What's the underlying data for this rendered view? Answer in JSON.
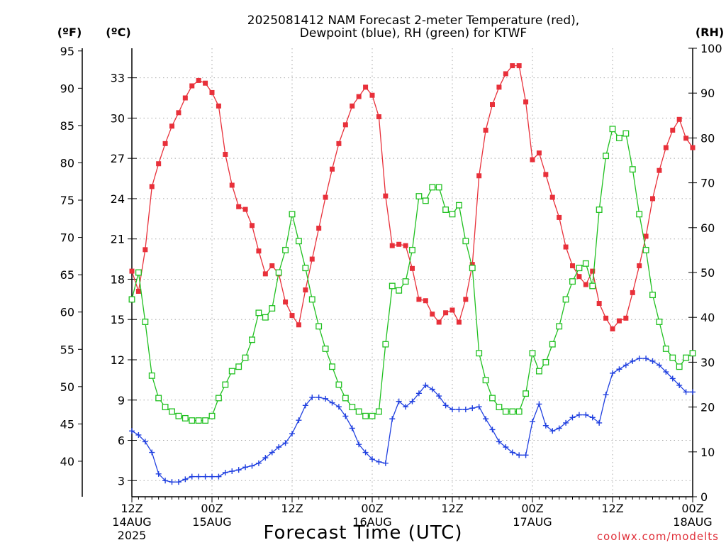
{
  "chart_data": {
    "type": "line",
    "title_line1": "2025081412 NAM Forecast 2-meter Temperature (red),",
    "title_line2": "Dewpoint (blue), RH (green) for KTWF",
    "xlabel": "Forecast Time (UTC)",
    "credit": "coolwx.com/modelts",
    "units": {
      "fahrenheit": "(ºF)",
      "celsius": "(ºC)",
      "rh": "(RH)"
    },
    "x_range_hours": [
      0,
      84
    ],
    "celsius_range": [
      1.8,
      35.2
    ],
    "fahrenheit_axis_range": [
      35.24,
      95.36
    ],
    "rh_range": [
      0,
      100
    ],
    "fahrenheit_ticks": [
      "40",
      "45",
      "50",
      "55",
      "60",
      "65",
      "70",
      "75",
      "80",
      "85",
      "90",
      "95"
    ],
    "celsius_ticks": [
      "3",
      "6",
      "9",
      "12",
      "15",
      "18",
      "21",
      "24",
      "27",
      "30",
      "33"
    ],
    "rh_ticks": [
      "0",
      "10",
      "20",
      "30",
      "40",
      "50",
      "60",
      "70",
      "80",
      "90",
      "100"
    ],
    "x_ticks": [
      {
        "hour": 0,
        "label1": "12Z",
        "label2": "14AUG",
        "label3": "2025"
      },
      {
        "hour": 12,
        "label1": "00Z",
        "label2": "15AUG",
        "label3": ""
      },
      {
        "hour": 24,
        "label1": "12Z",
        "label2": "",
        "label3": ""
      },
      {
        "hour": 36,
        "label1": "00Z",
        "label2": "16AUG",
        "label3": ""
      },
      {
        "hour": 48,
        "label1": "12Z",
        "label2": "",
        "label3": ""
      },
      {
        "hour": 60,
        "label1": "00Z",
        "label2": "17AUG",
        "label3": ""
      },
      {
        "hour": 72,
        "label1": "12Z",
        "label2": "",
        "label3": ""
      },
      {
        "hour": 84,
        "label1": "00Z",
        "label2": "18AUG",
        "label3": ""
      }
    ],
    "grid": true,
    "series": [
      {
        "name": "Temperature",
        "color": "#e8303a",
        "marker": "filled-square",
        "axis": "celsius",
        "values": [
          18.6,
          17.1,
          20.2,
          24.9,
          26.6,
          28.1,
          29.4,
          30.4,
          31.5,
          32.4,
          32.8,
          32.6,
          31.9,
          30.9,
          27.3,
          25.0,
          23.4,
          23.2,
          22.0,
          20.1,
          18.4,
          19.0,
          18.4,
          16.3,
          15.3,
          14.6,
          17.2,
          19.5,
          21.8,
          24.1,
          26.2,
          28.1,
          29.5,
          30.9,
          31.6,
          32.3,
          31.7,
          30.1,
          24.2,
          20.5,
          20.6,
          20.5,
          18.8,
          16.5,
          16.4,
          15.4,
          14.8,
          15.5,
          15.7,
          14.8,
          16.5,
          19.1,
          25.7,
          29.1,
          31.0,
          32.3,
          33.3,
          33.9,
          33.9,
          31.2,
          26.9,
          27.4,
          25.8,
          24.1,
          22.6,
          20.4,
          19.0,
          18.2,
          17.6,
          18.6,
          16.2,
          15.1,
          14.3,
          14.9,
          15.1,
          17.0,
          19.0,
          21.2,
          24.0,
          26.1,
          27.8,
          29.1,
          29.9,
          28.5,
          27.8
        ]
      },
      {
        "name": "Dewpoint",
        "color": "#2040e0",
        "marker": "plus",
        "axis": "celsius",
        "values": [
          6.7,
          6.4,
          5.9,
          5.1,
          3.5,
          3.0,
          2.9,
          2.9,
          3.1,
          3.3,
          3.3,
          3.3,
          3.3,
          3.3,
          3.6,
          3.7,
          3.8,
          4.0,
          4.1,
          4.3,
          4.7,
          5.1,
          5.5,
          5.8,
          6.5,
          7.5,
          8.6,
          9.2,
          9.2,
          9.1,
          8.8,
          8.5,
          7.8,
          6.9,
          5.7,
          5.1,
          4.6,
          4.4,
          4.3,
          7.6,
          8.9,
          8.5,
          8.9,
          9.5,
          10.1,
          9.8,
          9.3,
          8.6,
          8.3,
          8.3,
          8.3,
          8.4,
          8.5,
          7.6,
          6.8,
          5.9,
          5.5,
          5.1,
          4.9,
          4.9,
          7.4,
          8.7,
          7.1,
          6.7,
          6.9,
          7.3,
          7.7,
          7.9,
          7.9,
          7.7,
          7.3,
          9.4,
          11.0,
          11.3,
          11.6,
          11.9,
          12.1,
          12.1,
          11.9,
          11.6,
          11.1,
          10.6,
          10.1,
          9.6,
          9.6
        ]
      },
      {
        "name": "RH",
        "color": "#20c020",
        "marker": "open-square",
        "axis": "rh",
        "values": [
          44,
          50,
          39,
          27,
          22,
          20,
          19,
          18,
          17.5,
          17,
          17,
          17,
          18,
          22,
          25,
          28,
          29,
          31,
          35,
          41,
          40,
          42,
          50,
          55,
          63,
          57,
          51,
          44,
          38,
          33,
          29,
          25,
          22,
          20,
          19,
          18,
          18,
          19,
          34,
          47,
          46,
          48,
          55,
          67,
          66,
          69,
          69,
          64,
          63,
          65,
          57,
          51,
          32,
          26,
          22,
          20,
          19,
          19,
          19,
          23,
          32,
          28,
          30,
          34,
          38,
          44,
          48,
          51,
          52,
          47,
          64,
          76,
          82,
          80,
          81,
          73,
          63,
          55,
          45,
          39,
          33,
          31,
          29,
          31,
          32
        ]
      }
    ]
  }
}
